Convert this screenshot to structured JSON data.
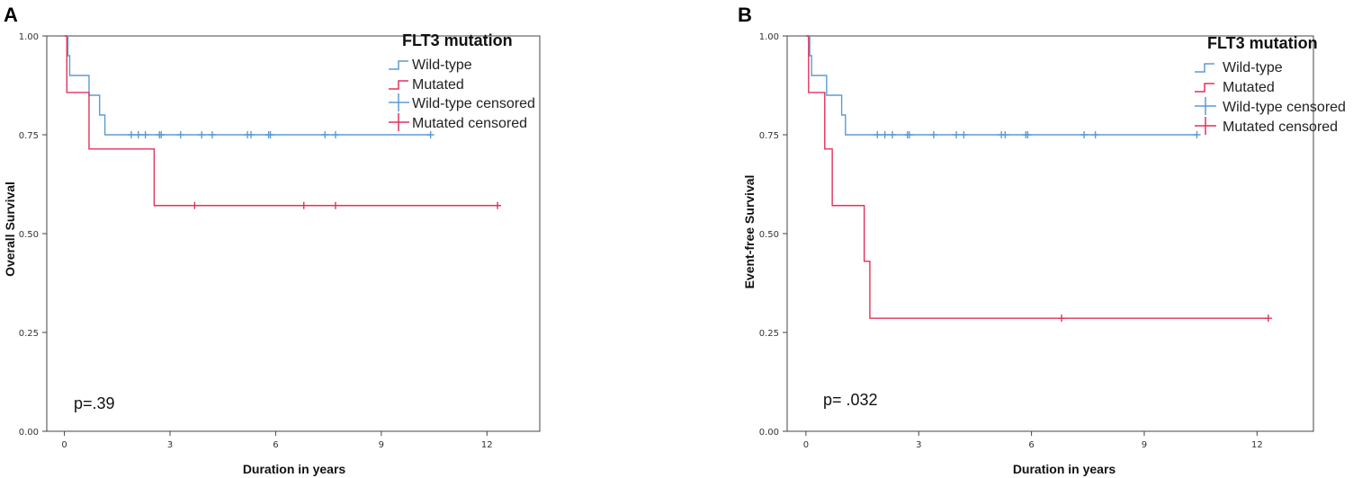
{
  "figure": {
    "colors": {
      "wild_type": "#5b9bd5",
      "mutated": "#e0325a",
      "axis": "#444444"
    }
  },
  "chart_data": [
    {
      "type": "line",
      "subtype": "kaplan-meier",
      "panel_label": "A",
      "xlabel": "Duration in years",
      "ylabel": "Overall Survival",
      "xlim": [
        -0.5,
        13.5
      ],
      "ylim": [
        0,
        1
      ],
      "x_ticks": [
        0,
        3,
        6,
        9,
        12
      ],
      "y_ticks": [
        0.0,
        0.25,
        0.5,
        0.75,
        1.0
      ],
      "y_tick_labels": [
        "0.00",
        "0.25",
        "0.50",
        "0.75",
        "1.00"
      ],
      "legend_title": "FLT3 mutation",
      "legend_items": [
        "Wild-type",
        "Mutated",
        "Wild-type censored",
        "Mutated censored"
      ],
      "legend_position": "top-right",
      "annotation": "p=.39",
      "series": [
        {
          "name": "Wild-type",
          "color_key": "wild_type",
          "steps": [
            [
              0,
              1.0
            ],
            [
              0.1,
              0.95
            ],
            [
              0.15,
              0.9
            ],
            [
              0.7,
              0.85
            ],
            [
              1.0,
              0.8
            ],
            [
              1.15,
              0.75
            ],
            [
              10.4,
              0.75
            ]
          ],
          "censored": [
            1.9,
            2.1,
            2.3,
            2.7,
            2.75,
            3.3,
            3.9,
            4.2,
            5.2,
            5.3,
            5.8,
            5.85,
            7.4,
            7.7,
            10.4
          ]
        },
        {
          "name": "Mutated",
          "color_key": "mutated",
          "steps": [
            [
              0,
              1.0
            ],
            [
              0.07,
              0.857
            ],
            [
              0.7,
              0.714
            ],
            [
              2.55,
              0.571
            ],
            [
              12.3,
              0.571
            ]
          ],
          "censored": [
            3.7,
            6.8,
            7.7,
            12.3
          ]
        }
      ]
    },
    {
      "type": "line",
      "subtype": "kaplan-meier",
      "panel_label": "B",
      "xlabel": "Duration in years",
      "ylabel": "Event-free Survival",
      "xlim": [
        -0.5,
        13.5
      ],
      "ylim": [
        0,
        1
      ],
      "x_ticks": [
        0,
        3,
        6,
        9,
        12
      ],
      "y_ticks": [
        0.0,
        0.25,
        0.5,
        0.75,
        1.0
      ],
      "y_tick_labels": [
        "0.00",
        "0.25",
        "0.50",
        "0.75",
        "1.00"
      ],
      "legend_title": "FLT3 mutation",
      "legend_items": [
        "Wild-type",
        "Mutated",
        "Wild-type censored",
        "Mutated censored"
      ],
      "legend_position": "top-right",
      "annotation": "p= .032",
      "series": [
        {
          "name": "Wild-type",
          "color_key": "wild_type",
          "steps": [
            [
              0,
              1.0
            ],
            [
              0.1,
              0.95
            ],
            [
              0.15,
              0.9
            ],
            [
              0.55,
              0.85
            ],
            [
              0.95,
              0.8
            ],
            [
              1.05,
              0.75
            ],
            [
              10.4,
              0.75
            ]
          ],
          "censored": [
            1.9,
            2.1,
            2.3,
            2.7,
            2.75,
            3.4,
            4.0,
            4.2,
            5.2,
            5.3,
            5.85,
            5.9,
            7.4,
            7.7,
            10.4
          ]
        },
        {
          "name": "Mutated",
          "color_key": "mutated",
          "steps": [
            [
              0,
              1.0
            ],
            [
              0.07,
              0.857
            ],
            [
              0.5,
              0.714
            ],
            [
              0.7,
              0.571
            ],
            [
              1.55,
              0.43
            ],
            [
              1.7,
              0.286
            ],
            [
              12.3,
              0.286
            ]
          ],
          "censored": [
            6.8,
            12.3
          ]
        }
      ]
    }
  ]
}
